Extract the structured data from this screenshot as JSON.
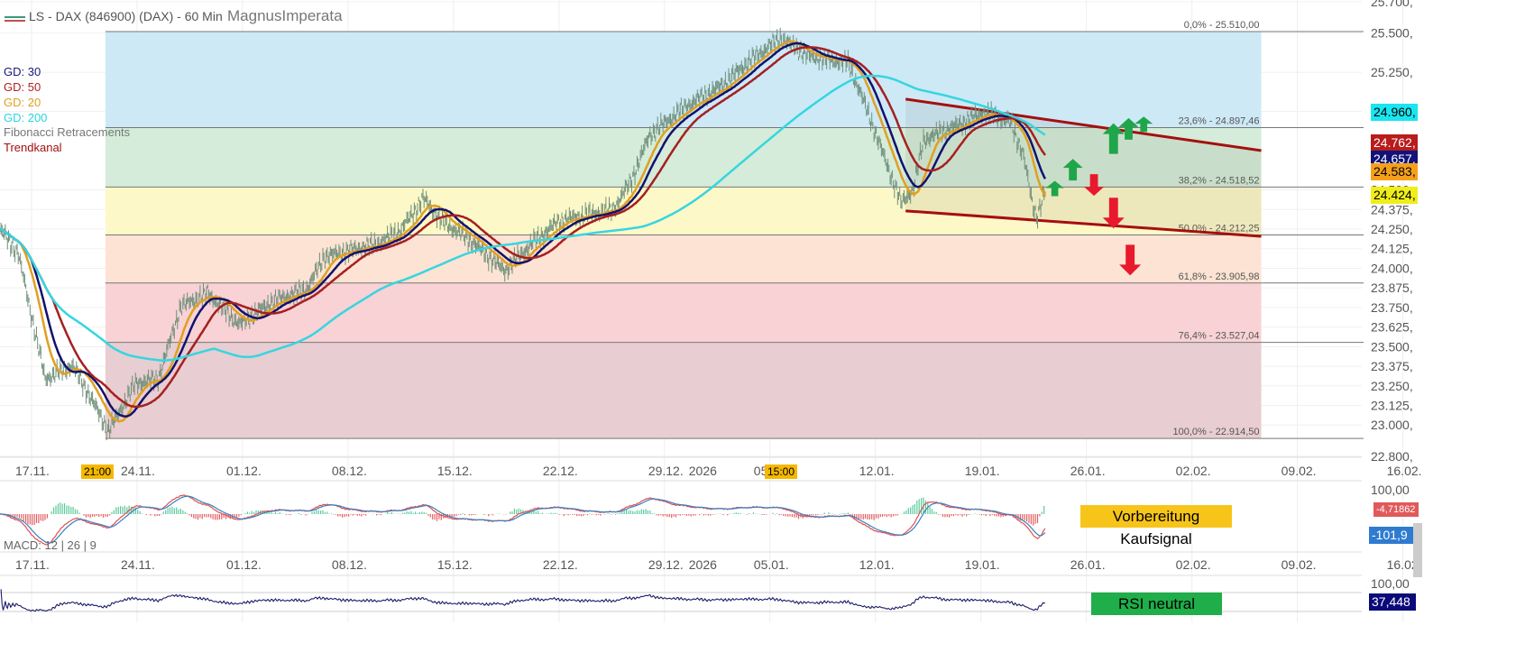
{
  "header": {
    "instrument": "LS - DAX (846900) (DAX) - 60 Min",
    "author": "MagnusImperata"
  },
  "legend": [
    {
      "label": "GD: 30",
      "color": "#1a1a7a"
    },
    {
      "label": "GD: 50",
      "color": "#b22222"
    },
    {
      "label": "GD: 20",
      "color": "#e0a020"
    },
    {
      "label": "GD: 200",
      "color": "#2ad4e0"
    },
    {
      "label": "Fibonacci Retracements",
      "color": "#777777"
    },
    {
      "label": "Trendkanal",
      "color": "#a01010"
    }
  ],
  "badges": {
    "gd200": "24.960,",
    "gd50": "24.762,",
    "gd30": "24.657,",
    "gd20": "24.583,",
    "price": "24.424,",
    "macd": "-4,71862",
    "signal": "-101,9",
    "rsi": "37,448"
  },
  "crosshair": {
    "time_left": "21:00",
    "time_right": "15:00"
  },
  "notes": {
    "macd": "Vorbereitung Kaufsignal",
    "rsi": "RSI neutral"
  },
  "indicator_labels": {
    "macd": "MACD: 12 | 26 | 9",
    "macd_top": "100,00",
    "rsi_top": "100,00"
  },
  "chart_data": {
    "type": "line",
    "title": "LS - DAX (846900) (DAX) - 60 Min",
    "x_ticks": [
      "17.11.",
      "24.11.",
      "01.12.",
      "08.12.",
      "15.12.",
      "22.12.",
      "29.12.",
      "2026",
      "05.01.",
      "12.01.",
      "19.01.",
      "26.01.",
      "02.02.",
      "09.02.",
      "16.02."
    ],
    "x_tick_days": [
      0,
      7,
      14,
      21,
      28,
      35,
      42,
      44.3,
      49,
      56,
      63,
      70,
      77,
      84,
      91
    ],
    "y_ticks": [
      "25.700,",
      "25.500,",
      "25.250,",
      "25.000,",
      "24.500,",
      "24.375,",
      "24.250,",
      "24.125,",
      "24.000,",
      "23.875,",
      "23.750,",
      "23.625,",
      "23.500,",
      "23.375,",
      "23.250,",
      "23.125,",
      "23.000,",
      "22.800,"
    ],
    "y_tick_values": [
      25700,
      25500,
      25250,
      25000,
      24500,
      24375,
      24250,
      24125,
      24000,
      23875,
      23750,
      23625,
      23500,
      23375,
      23250,
      23125,
      23000,
      22800
    ],
    "price_keypoints_day_value": [
      [
        -2.1,
        24244
      ],
      [
        -0.9,
        24100
      ],
      [
        0.9,
        23295
      ],
      [
        2.7,
        23381
      ],
      [
        3.9,
        23180
      ],
      [
        5.1,
        22961
      ],
      [
        6.9,
        23266
      ],
      [
        8.4,
        23295
      ],
      [
        9.9,
        23755
      ],
      [
        11.7,
        23841
      ],
      [
        13.8,
        23640
      ],
      [
        15.9,
        23784
      ],
      [
        18.3,
        23870
      ],
      [
        19.4,
        24072
      ],
      [
        23.0,
        24158
      ],
      [
        24.5,
        24244
      ],
      [
        26.0,
        24446
      ],
      [
        27.2,
        24302
      ],
      [
        29.0,
        24187
      ],
      [
        31.4,
        23985
      ],
      [
        33.2,
        24158
      ],
      [
        35.0,
        24302
      ],
      [
        38.6,
        24377
      ],
      [
        39.8,
        24561
      ],
      [
        41.0,
        24848
      ],
      [
        43.4,
        25032
      ],
      [
        45.8,
        25165
      ],
      [
        47.6,
        25320
      ],
      [
        49.7,
        25470
      ],
      [
        51.5,
        25355
      ],
      [
        54.2,
        25309
      ],
      [
        55.4,
        25021
      ],
      [
        56.6,
        24705
      ],
      [
        57.7,
        24417
      ],
      [
        58.5,
        24503
      ],
      [
        59.2,
        24820
      ],
      [
        61.3,
        24906
      ],
      [
        63.1,
        24992
      ],
      [
        64.9,
        24935
      ],
      [
        65.8,
        24733
      ],
      [
        66.4,
        24417
      ],
      [
        66.7,
        24330
      ],
      [
        67.3,
        24503
      ]
    ],
    "moving_averages": [
      {
        "name": "GD: 20",
        "period": 20
      },
      {
        "name": "GD: 30",
        "period": 30
      },
      {
        "name": "GD: 50",
        "period": 50
      },
      {
        "name": "GD: 200",
        "period": 200
      }
    ],
    "fibonacci": {
      "range_days": [
        4.9,
        81.6
      ],
      "levels": [
        {
          "label": "0,0% - 25.510,00",
          "value": 25510
        },
        {
          "label": "23,6% - 24.897,46",
          "value": 24897.46
        },
        {
          "label": "38,2% - 24.518,52",
          "value": 24518.52
        },
        {
          "label": "50,0% - 24.212,25",
          "value": 24212.25
        },
        {
          "label": "61,8% - 23.905,98",
          "value": 23905.98
        },
        {
          "label": "76,4% - 23.527,04",
          "value": 23527.04
        },
        {
          "label": "100,0% - 22.914,50",
          "value": 22914.5
        }
      ],
      "zone_colors": [
        "#cde9f6",
        "#d4ecd9",
        "#fdf8c8",
        "#fde3d3",
        "#f8d2d5",
        "#e8cdd2"
      ]
    },
    "trend_channel": {
      "upper": [
        [
          58.0,
          25079
        ],
        [
          81.6,
          24751
        ]
      ],
      "lower": [
        [
          58.0,
          24366
        ],
        [
          81.6,
          24204
        ]
      ]
    },
    "arrows": [
      {
        "dir": "up",
        "day": 67.9,
        "value": 24460,
        "size": "s"
      },
      {
        "dir": "up",
        "day": 69.1,
        "value": 24560,
        "size": "m"
      },
      {
        "dir": "down",
        "day": 70.5,
        "value": 24600,
        "size": "m"
      },
      {
        "dir": "up",
        "day": 71.8,
        "value": 24730,
        "size": "l"
      },
      {
        "dir": "down",
        "day": 71.8,
        "value": 24450,
        "size": "l"
      },
      {
        "dir": "up",
        "day": 72.8,
        "value": 24820,
        "size": "m"
      },
      {
        "dir": "up",
        "day": 73.8,
        "value": 24870,
        "size": "s"
      },
      {
        "dir": "down",
        "day": 72.9,
        "value": 24150,
        "size": "l"
      }
    ],
    "ylim": [
      22750,
      25720
    ]
  }
}
